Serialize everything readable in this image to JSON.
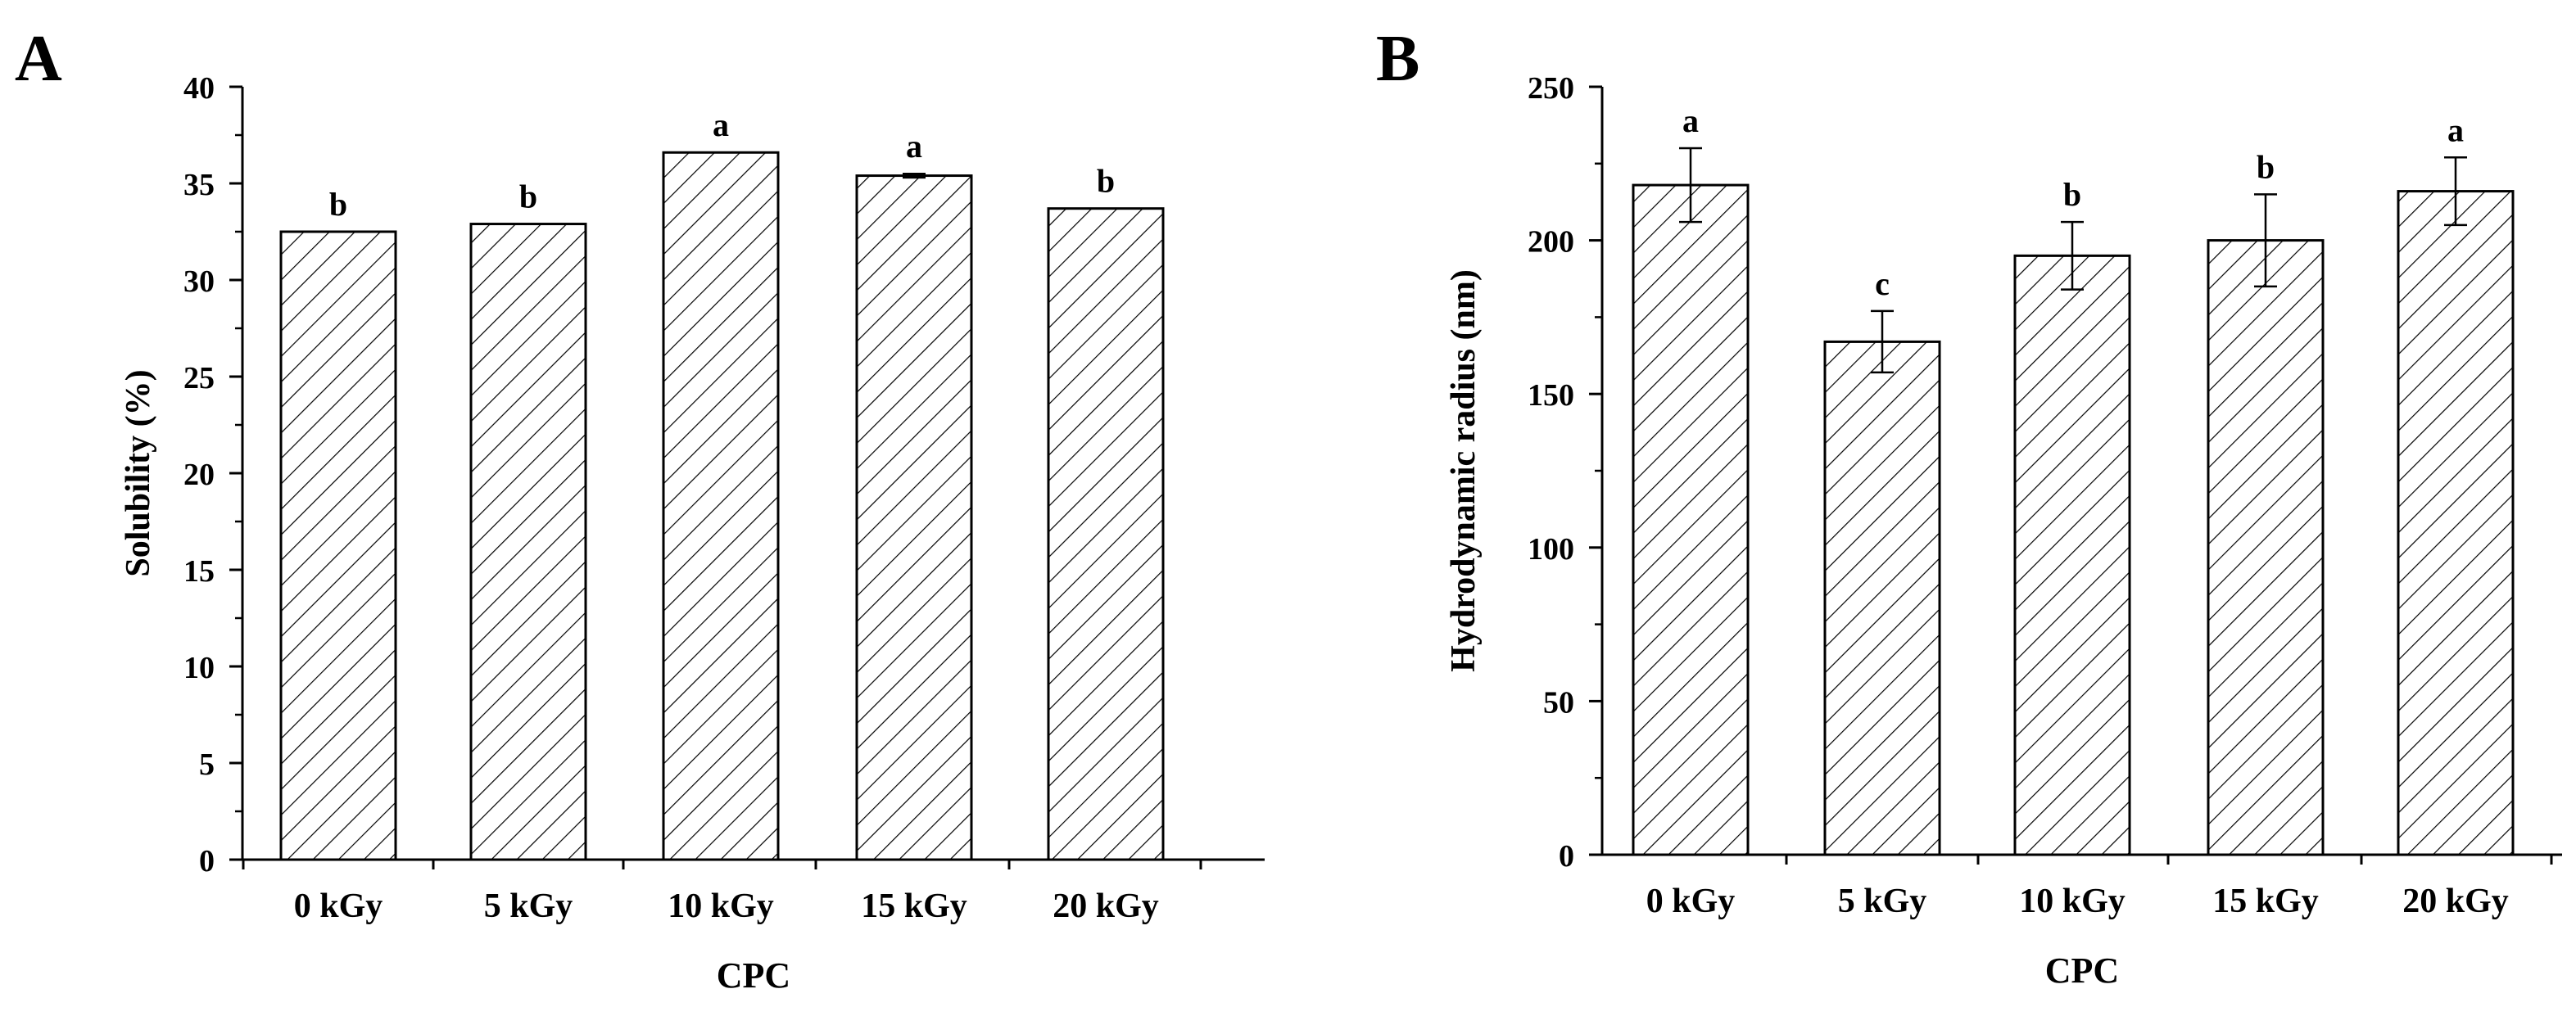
{
  "panels": [
    {
      "label": "A",
      "chart_data": {
        "type": "bar",
        "categories": [
          "0 kGy",
          "5 kGy",
          "10 kGy",
          "15 kGy",
          "20 kGy"
        ],
        "values": [
          32.5,
          32.9,
          36.6,
          35.4,
          33.7
        ],
        "errors": [
          0,
          0,
          0,
          0.1,
          0
        ],
        "letters": [
          "b",
          "b",
          "a",
          "a",
          "b"
        ],
        "xlabel": "CPC",
        "ylabel": "Solubility (%)",
        "ylim": [
          0,
          40
        ],
        "yticks": [
          0,
          5,
          10,
          15,
          20,
          25,
          30,
          35,
          40
        ],
        "pattern": "diagonal-hatch",
        "grid": false
      }
    },
    {
      "label": "B",
      "chart_data": {
        "type": "bar",
        "categories": [
          "0 kGy",
          "5 kGy",
          "10 kGy",
          "15 kGy",
          "20 kGy"
        ],
        "values": [
          218,
          167,
          195,
          200,
          216
        ],
        "errors": [
          12,
          10,
          11,
          15,
          11
        ],
        "letters": [
          "a",
          "c",
          "b",
          "b",
          "a"
        ],
        "xlabel": "CPC",
        "ylabel": "Hydrodynamic radius (nm)",
        "ylim": [
          0,
          250
        ],
        "yticks": [
          0,
          50,
          100,
          150,
          200,
          250
        ],
        "pattern": "diagonal-hatch",
        "grid": false
      }
    }
  ]
}
